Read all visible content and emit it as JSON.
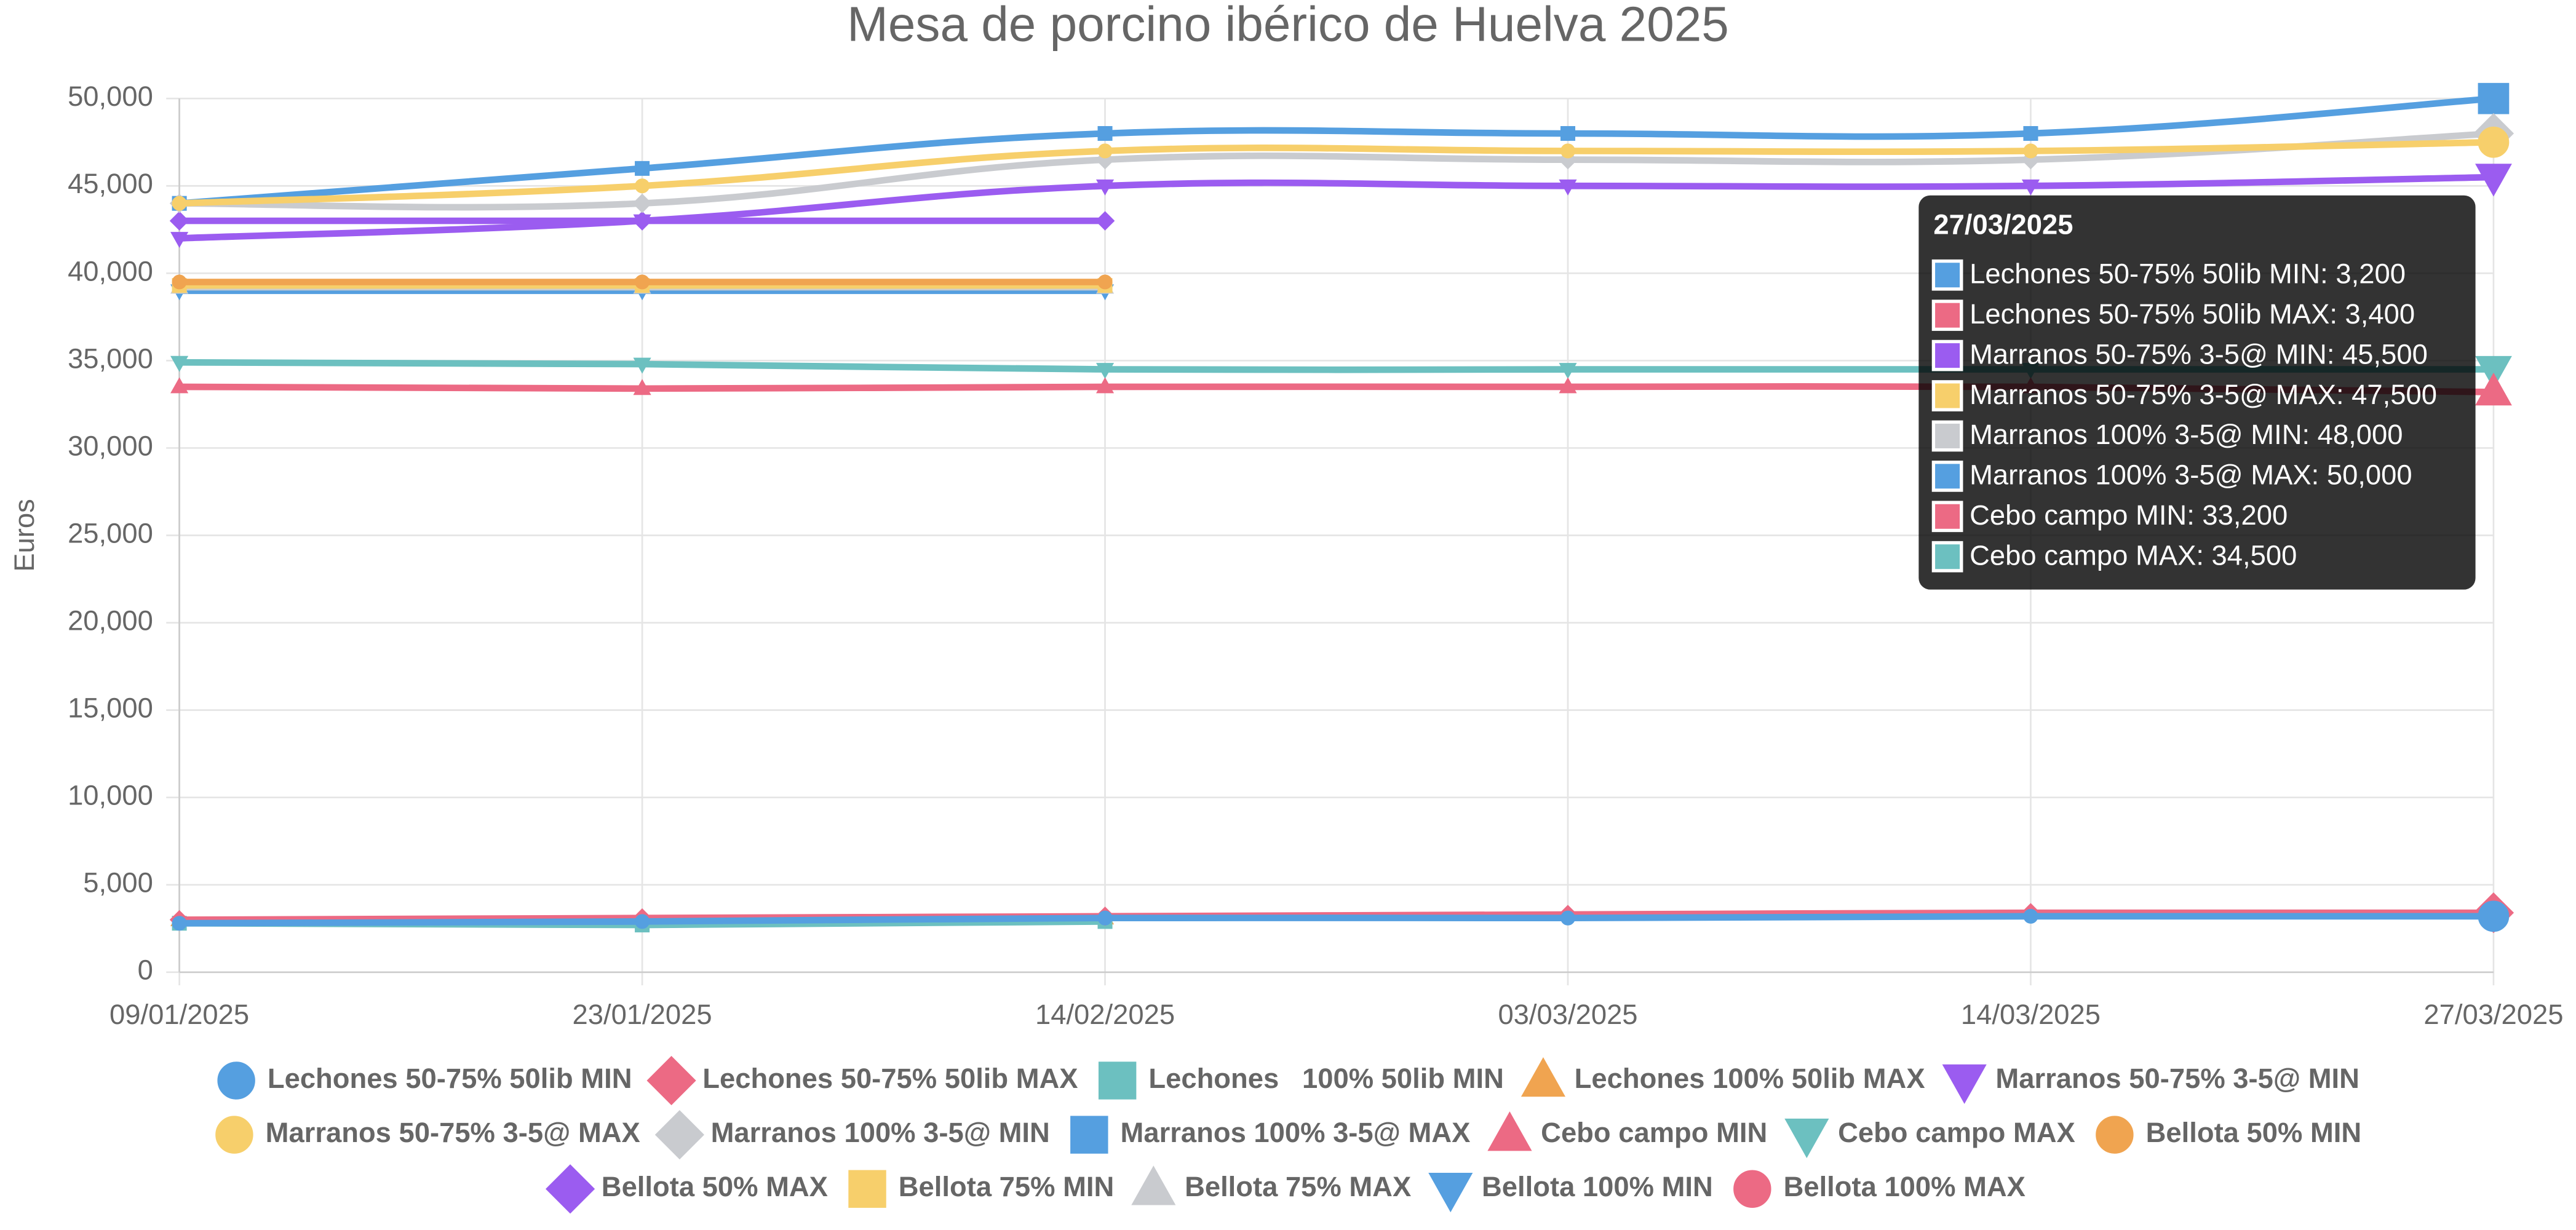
{
  "chart_data": {
    "type": "line",
    "title": "Mesa de porcino ibérico de Huelva 2025",
    "y_label": "Euros",
    "categories": [
      "09/01/2025",
      "23/01/2025",
      "14/02/2025",
      "03/03/2025",
      "14/03/2025",
      "27/03/2025"
    ],
    "ylim": [
      0,
      50000
    ],
    "yticks": [
      0,
      {
        "value": 5000,
        "label": "5,000"
      },
      {
        "value": 10000,
        "label": "10,000"
      },
      {
        "value": 15000,
        "label": "15,000"
      },
      {
        "value": 20000,
        "label": "20,000"
      },
      {
        "value": 25000,
        "label": "25,000"
      },
      {
        "value": 30000,
        "label": "30,000"
      },
      {
        "value": 35000,
        "label": "35,000"
      },
      {
        "value": 40000,
        "label": "40,000"
      },
      {
        "value": 45000,
        "label": "45,000"
      },
      {
        "value": 50000,
        "label": "50,000"
      }
    ],
    "grid": true,
    "series": [
      {
        "name": "Lechones 50-75% 50lib MIN",
        "color": "#559fe0",
        "marker": "circle",
        "values": [
          2800,
          2900,
          3100,
          3100,
          3200,
          3200
        ]
      },
      {
        "name": "Lechones 50-75% 50lib MAX",
        "color": "#ec6a84",
        "marker": "diamond",
        "values": [
          3000,
          3100,
          3200,
          3300,
          3400,
          3400
        ]
      },
      {
        "name": "Lechones   100% 50lib MIN",
        "color": "#6cc0c0",
        "marker": "square",
        "values": [
          2800,
          2700,
          2900,
          null,
          null,
          null
        ]
      },
      {
        "name": "Lechones 100% 50lib MAX",
        "color": "#f0a450",
        "marker": "triangle",
        "values": [
          3000,
          3000,
          3100,
          null,
          null,
          null
        ]
      },
      {
        "name": "Marranos 50-75% 3-5@ MIN",
        "color": "#9b5cf0",
        "marker": "triangle-down",
        "values": [
          42000,
          43000,
          45000,
          45000,
          45000,
          45500
        ]
      },
      {
        "name": "Marranos 50-75% 3-5@ MAX",
        "color": "#f7cf6b",
        "marker": "circle",
        "values": [
          44000,
          45000,
          47000,
          47000,
          47000,
          47500
        ]
      },
      {
        "name": "Marranos 100% 3-5@ MIN",
        "color": "#c9cbcf",
        "marker": "diamond",
        "values": [
          44000,
          44000,
          46500,
          46500,
          46500,
          48000
        ]
      },
      {
        "name": "Marranos 100% 3-5@ MAX",
        "color": "#559fe0",
        "marker": "square",
        "values": [
          44000,
          46000,
          48000,
          48000,
          48000,
          50000
        ]
      },
      {
        "name": "Cebo campo MIN",
        "color": "#ec6a84",
        "marker": "triangle",
        "values": [
          33500,
          33400,
          33500,
          33500,
          33500,
          33200
        ]
      },
      {
        "name": "Cebo campo MAX",
        "color": "#6cc0c0",
        "marker": "triangle-down",
        "values": [
          34900,
          34800,
          34500,
          34500,
          34500,
          34500
        ]
      },
      {
        "name": "Bellota 50% MIN",
        "color": "#f0a450",
        "marker": "circle",
        "values": [
          39500,
          39500,
          39500,
          null,
          null,
          null
        ]
      },
      {
        "name": "Bellota 50% MAX",
        "color": "#9b5cf0",
        "marker": "diamond",
        "values": [
          43000,
          43000,
          43000,
          null,
          null,
          null
        ]
      },
      {
        "name": "Bellota 75% MIN",
        "color": "#f7cf6b",
        "marker": "square",
        "values": [
          39300,
          39300,
          39300,
          null,
          null,
          null
        ]
      },
      {
        "name": "Bellota 75% MAX",
        "color": "#c9cbcf",
        "marker": "triangle",
        "values": [
          39200,
          39200,
          39200,
          null,
          null,
          null
        ]
      },
      {
        "name": "Bellota 100% MIN",
        "color": "#559fe0",
        "marker": "triangle-down",
        "values": [
          39000,
          39000,
          39000,
          null,
          null,
          null
        ]
      },
      {
        "name": "Bellota 100% MAX",
        "color": "#ec6a84",
        "marker": "circle",
        "values": [
          39400,
          39400,
          39400,
          null,
          null,
          null
        ]
      }
    ],
    "tooltip": {
      "title": "27/03/2025",
      "items": [
        {
          "text": "Lechones 50-75% 50lib MIN: 3,200",
          "color": "#559fe0"
        },
        {
          "text": "Lechones 50-75% 50lib MAX: 3,400",
          "color": "#ec6a84"
        },
        {
          "text": "Marranos 50-75% 3-5@ MIN: 45,500",
          "color": "#9b5cf0"
        },
        {
          "text": "Marranos 50-75% 3-5@ MAX: 47,500",
          "color": "#f7cf6b"
        },
        {
          "text": "Marranos 100% 3-5@ MIN: 48,000",
          "color": "#c9cbcf"
        },
        {
          "text": "Marranos 100% 3-5@ MAX: 50,000",
          "color": "#559fe0"
        },
        {
          "text": "Cebo campo MIN: 33,200",
          "color": "#ec6a84"
        },
        {
          "text": "Cebo campo MAX: 34,500",
          "color": "#6cc0c0"
        }
      ]
    }
  }
}
